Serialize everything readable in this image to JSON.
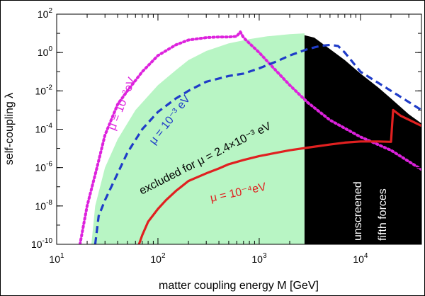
{
  "chart_data": {
    "type": "line",
    "title": "",
    "xlabel": "matter coupling energy M [GeV]",
    "ylabel": "self-coupling λ",
    "x_scale": "log",
    "y_scale": "log",
    "xlim": [
      10,
      40000
    ],
    "ylim": [
      1e-10,
      100
    ],
    "grid": false,
    "x_ticks": [
      {
        "value": 10,
        "base": "10",
        "exp": "1"
      },
      {
        "value": 100,
        "base": "10",
        "exp": "2"
      },
      {
        "value": 1000,
        "base": "10",
        "exp": "3"
      },
      {
        "value": 10000,
        "base": "10",
        "exp": "4"
      }
    ],
    "y_ticks": [
      {
        "value": 1e-10,
        "base": "10",
        "exp": "-10"
      },
      {
        "value": 1e-08,
        "base": "10",
        "exp": "-8"
      },
      {
        "value": 1e-06,
        "base": "10",
        "exp": "-6"
      },
      {
        "value": 0.0001,
        "base": "10",
        "exp": "-4"
      },
      {
        "value": 0.01,
        "base": "10",
        "exp": "-2"
      },
      {
        "value": 1,
        "base": "10",
        "exp": "0"
      },
      {
        "value": 100,
        "base": "10",
        "exp": "2"
      }
    ],
    "regions": [
      {
        "id": "excluded",
        "label": "excluded for μ = 2.4×10⁻³ eV",
        "color": "#b8f5c4",
        "points": [
          [
            22,
            1e-10
          ],
          [
            24,
            1e-08
          ],
          [
            30,
            1e-06
          ],
          [
            40,
            3e-05
          ],
          [
            60,
            0.001
          ],
          [
            100,
            0.02
          ],
          [
            150,
            0.12
          ],
          [
            200,
            0.4
          ],
          [
            300,
            1.2
          ],
          [
            500,
            3
          ],
          [
            800,
            5
          ],
          [
            1200,
            7
          ],
          [
            2000,
            9
          ],
          [
            2800,
            10
          ],
          [
            2800,
            1e-10
          ]
        ]
      },
      {
        "id": "unscreened",
        "label": "unscreened fifth forces",
        "color": "#000000",
        "points": [
          [
            2800,
            1e-10
          ],
          [
            2800,
            8
          ],
          [
            3500,
            6
          ],
          [
            5000,
            1.5
          ],
          [
            7000,
            0.4
          ],
          [
            10000,
            0.08
          ],
          [
            15000,
            0.015
          ],
          [
            20000,
            0.004
          ],
          [
            30000,
            0.0006
          ],
          [
            40000,
            0.0002
          ],
          [
            40000,
            1e-10
          ]
        ]
      }
    ],
    "series": [
      {
        "name": "μ = 10⁻²eV",
        "color": "#dd22dd",
        "style": "dotted",
        "x": [
          17,
          20,
          25,
          30,
          40,
          50,
          70,
          100,
          150,
          200,
          300,
          400,
          500,
          600,
          650,
          700,
          800,
          1000,
          1500,
          2000,
          3000,
          5000,
          10000,
          20000,
          40000
        ],
        "y": [
          1e-10,
          1e-08,
          1e-06,
          5e-05,
          0.002,
          0.01,
          0.1,
          0.7,
          2.5,
          4.5,
          6,
          6.5,
          6.5,
          7,
          12,
          6,
          3,
          1,
          0.1,
          0.02,
          0.0025,
          0.0003,
          4e-05,
          8e-06,
          8e-07
        ]
      },
      {
        "name": "μ = 10⁻³eV",
        "color": "#1f3cc8",
        "style": "dashed",
        "x": [
          24,
          26,
          30,
          40,
          50,
          70,
          100,
          150,
          200,
          300,
          500,
          700,
          1000,
          1500,
          2000,
          3000,
          4000,
          5000,
          6000,
          7000,
          10000,
          20000,
          40000
        ],
        "y": [
          1e-10,
          3e-09,
          2e-08,
          5e-07,
          6e-06,
          0.0001,
          0.0008,
          0.004,
          0.01,
          0.03,
          0.06,
          0.08,
          0.15,
          0.35,
          0.7,
          1.5,
          2.2,
          2.5,
          2.2,
          1,
          0.1,
          0.01,
          0.001
        ]
      },
      {
        "name": "μ = 10⁻⁴eV",
        "color": "#e02020",
        "style": "solid",
        "x": [
          65,
          70,
          80,
          100,
          120,
          150,
          200,
          300,
          400,
          500,
          700,
          1000,
          1500,
          2000,
          3000,
          5000,
          7000,
          10000,
          15000,
          20000,
          21000,
          25000,
          40000
        ],
        "y": [
          1e-10,
          3e-10,
          1.5e-09,
          7e-09,
          2e-08,
          6e-08,
          2e-07,
          5e-07,
          9e-07,
          1.5e-06,
          2.5e-06,
          4e-06,
          6e-06,
          8e-06,
          1.1e-05,
          1.6e-05,
          2e-05,
          2.3e-05,
          2.3e-05,
          2.2e-05,
          0.001,
          0.0005,
          0.00015
        ]
      }
    ],
    "annotations": [
      {
        "id": "mu-2",
        "text": "μ = 10⁻²eV",
        "color": "#dd22dd"
      },
      {
        "id": "mu-3",
        "text": "μ = 10⁻³ eV",
        "color": "#1f3cc8"
      },
      {
        "id": "excluded",
        "text": "excluded for μ = 2.4×10⁻³ eV",
        "color": "#000000"
      },
      {
        "id": "mu-4",
        "text": "μ = 10⁻⁴eV",
        "color": "#e02020"
      },
      {
        "id": "unscreened",
        "text": "unscreened",
        "color": "#ffffff"
      },
      {
        "id": "fifth-forces",
        "text": "fifth forces",
        "color": "#ffffff"
      }
    ]
  }
}
